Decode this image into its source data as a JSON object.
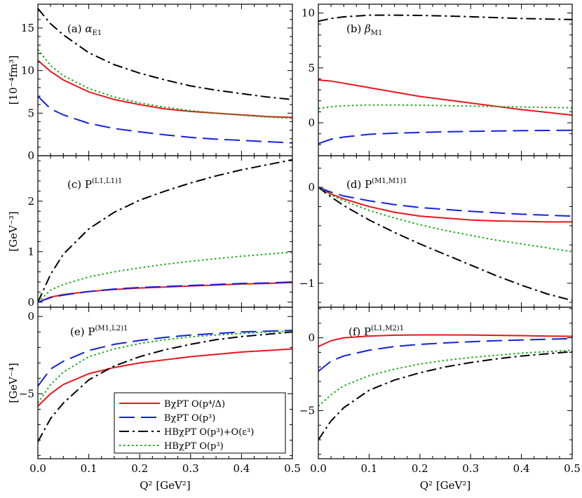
{
  "chart_data": [
    {
      "id": "a",
      "type": "line",
      "label_main": "(a) ",
      "label_italic": "α",
      "label_sub": "E1",
      "ylabel": "[10⁻⁴fm³]",
      "xlim": [
        0,
        0.5
      ],
      "ylim": [
        0,
        17.8
      ],
      "yticks": [
        {
          "v": 0,
          "t": "0"
        },
        {
          "v": 5,
          "t": "5"
        },
        {
          "v": 10,
          "t": "10"
        },
        {
          "v": 15,
          "t": "15"
        }
      ],
      "x": [
        0,
        0.025,
        0.05,
        0.1,
        0.15,
        0.2,
        0.25,
        0.3,
        0.35,
        0.4,
        0.45,
        0.5
      ],
      "series": [
        {
          "key": "bchpt_p4",
          "values": [
            11.2,
            9.9,
            8.9,
            7.5,
            6.6,
            6.0,
            5.5,
            5.2,
            5.0,
            4.8,
            4.6,
            4.5
          ]
        },
        {
          "key": "bchpt_p3",
          "values": [
            7.0,
            5.5,
            4.8,
            3.8,
            3.2,
            2.8,
            2.45,
            2.15,
            1.95,
            1.8,
            1.65,
            1.5
          ]
        },
        {
          "key": "hbchpt_p3_eps3",
          "values": [
            17.3,
            15.5,
            14.2,
            12.1,
            10.7,
            9.7,
            8.9,
            8.2,
            7.7,
            7.3,
            6.9,
            6.6
          ]
        },
        {
          "key": "hbchpt_p3",
          "values": [
            12.5,
            10.6,
            9.4,
            7.9,
            6.9,
            6.2,
            5.7,
            5.3,
            5.0,
            4.75,
            4.55,
            4.4
          ]
        }
      ]
    },
    {
      "id": "b",
      "type": "line",
      "label_main": "(b) ",
      "label_italic": "β",
      "label_sub": "M1",
      "ylabel": "",
      "xlim": [
        0,
        0.5
      ],
      "ylim": [
        -3,
        10.8
      ],
      "yticks": [
        {
          "v": 0,
          "t": "0"
        },
        {
          "v": 5,
          "t": "5"
        },
        {
          "v": 10,
          "t": "10"
        }
      ],
      "x": [
        0,
        0.025,
        0.05,
        0.1,
        0.15,
        0.2,
        0.25,
        0.3,
        0.35,
        0.4,
        0.45,
        0.5
      ],
      "series": [
        {
          "key": "bchpt_p4",
          "values": [
            3.9,
            3.8,
            3.6,
            3.2,
            2.8,
            2.4,
            2.1,
            1.8,
            1.5,
            1.2,
            0.95,
            0.7
          ]
        },
        {
          "key": "bchpt_p3",
          "values": [
            -1.9,
            -1.5,
            -1.3,
            -1.05,
            -0.95,
            -0.88,
            -0.82,
            -0.78,
            -0.75,
            -0.72,
            -0.7,
            -0.68
          ]
        },
        {
          "key": "hbchpt_p3_eps3",
          "values": [
            9.25,
            9.5,
            9.65,
            9.8,
            9.8,
            9.78,
            9.73,
            9.66,
            9.58,
            9.5,
            9.45,
            9.4
          ]
        },
        {
          "key": "hbchpt_p3",
          "values": [
            1.3,
            1.45,
            1.55,
            1.62,
            1.62,
            1.6,
            1.56,
            1.52,
            1.48,
            1.44,
            1.4,
            1.37
          ]
        }
      ]
    },
    {
      "id": "c",
      "type": "line",
      "label_main": "(c) P",
      "label_italic": "",
      "label_sup": "(L1,L1)1",
      "ylabel": "[GeV⁻³]",
      "xlim": [
        0,
        0.5
      ],
      "ylim": [
        -0.1,
        2.9
      ],
      "yticks": [
        {
          "v": 0,
          "t": "0"
        },
        {
          "v": 1,
          "t": "1"
        },
        {
          "v": 2,
          "t": "2"
        }
      ],
      "x": [
        0,
        0.025,
        0.05,
        0.1,
        0.15,
        0.2,
        0.25,
        0.3,
        0.35,
        0.4,
        0.45,
        0.5
      ],
      "series": [
        {
          "key": "bchpt_p4",
          "values": [
            0.0,
            0.1,
            0.15,
            0.21,
            0.25,
            0.28,
            0.3,
            0.32,
            0.34,
            0.36,
            0.37,
            0.39
          ]
        },
        {
          "key": "bchpt_p3",
          "values": [
            0.0,
            0.09,
            0.14,
            0.21,
            0.26,
            0.29,
            0.31,
            0.33,
            0.35,
            0.37,
            0.38,
            0.4
          ]
        },
        {
          "key": "hbchpt_p3_eps3",
          "values": [
            0.0,
            0.55,
            0.95,
            1.45,
            1.78,
            2.02,
            2.2,
            2.36,
            2.5,
            2.62,
            2.72,
            2.82
          ]
        },
        {
          "key": "hbchpt_p3",
          "values": [
            0.0,
            0.24,
            0.35,
            0.5,
            0.6,
            0.68,
            0.75,
            0.81,
            0.86,
            0.91,
            0.95,
            0.99
          ]
        }
      ]
    },
    {
      "id": "d",
      "type": "line",
      "label_main": "(d) P",
      "label_italic": "",
      "label_sup": "(M1,M1)1",
      "ylabel": "",
      "xlim": [
        0,
        0.5
      ],
      "ylim": [
        -1.25,
        0.33
      ],
      "yticks": [
        {
          "v": 0,
          "t": "0"
        },
        {
          "v": -1,
          "t": "−1"
        }
      ],
      "x": [
        0,
        0.025,
        0.05,
        0.1,
        0.15,
        0.2,
        0.25,
        0.3,
        0.35,
        0.4,
        0.45,
        0.5
      ],
      "series": [
        {
          "key": "bchpt_p4",
          "values": [
            0.0,
            -0.07,
            -0.12,
            -0.2,
            -0.26,
            -0.3,
            -0.32,
            -0.34,
            -0.35,
            -0.355,
            -0.36,
            -0.36
          ]
        },
        {
          "key": "bchpt_p3",
          "values": [
            0.0,
            -0.05,
            -0.09,
            -0.14,
            -0.18,
            -0.21,
            -0.23,
            -0.25,
            -0.265,
            -0.28,
            -0.29,
            -0.3
          ]
        },
        {
          "key": "hbchpt_p3_eps3",
          "values": [
            0.0,
            -0.1,
            -0.19,
            -0.34,
            -0.47,
            -0.59,
            -0.7,
            -0.81,
            -0.92,
            -1.02,
            -1.11,
            -1.18
          ]
        },
        {
          "key": "hbchpt_p3",
          "values": [
            0.0,
            -0.08,
            -0.14,
            -0.24,
            -0.32,
            -0.39,
            -0.45,
            -0.5,
            -0.55,
            -0.59,
            -0.63,
            -0.67
          ]
        }
      ]
    },
    {
      "id": "e",
      "type": "line",
      "label_main": "(e) P",
      "label_italic": "",
      "label_sup": "(M1,L2)1",
      "ylabel": "[GeV⁻⁴]",
      "xlim": [
        0,
        0.5
      ],
      "ylim": [
        -9.2,
        0.6
      ],
      "yticks": [
        {
          "v": 0,
          "t": "0"
        },
        {
          "v": -5,
          "t": "−5"
        }
      ],
      "x": [
        0,
        0.025,
        0.05,
        0.1,
        0.15,
        0.2,
        0.25,
        0.3,
        0.35,
        0.4,
        0.45,
        0.5
      ],
      "series": [
        {
          "key": "bchpt_p4",
          "values": [
            -5.8,
            -5.0,
            -4.4,
            -3.7,
            -3.3,
            -3.0,
            -2.8,
            -2.6,
            -2.45,
            -2.3,
            -2.2,
            -2.1
          ]
        },
        {
          "key": "bchpt_p3",
          "values": [
            -4.5,
            -3.4,
            -2.9,
            -2.2,
            -1.8,
            -1.55,
            -1.35,
            -1.2,
            -1.1,
            -1.0,
            -0.95,
            -0.9
          ]
        },
        {
          "key": "hbchpt_p3_eps3",
          "values": [
            -8.1,
            -6.6,
            -5.6,
            -4.1,
            -3.2,
            -2.6,
            -2.15,
            -1.8,
            -1.5,
            -1.3,
            -1.15,
            -1.0
          ]
        },
        {
          "key": "hbchpt_p3",
          "values": [
            -5.6,
            -4.4,
            -3.6,
            -2.6,
            -2.1,
            -1.75,
            -1.5,
            -1.32,
            -1.2,
            -1.1,
            -1.0,
            -0.95
          ]
        }
      ]
    },
    {
      "id": "f",
      "type": "line",
      "label_main": "(f) P",
      "label_italic": "",
      "label_sup": "(L1,M2)1",
      "ylabel": "",
      "xlim": [
        0,
        0.5
      ],
      "ylim": [
        -8.3,
        2.1
      ],
      "yticks": [
        {
          "v": 0,
          "t": "0"
        },
        {
          "v": -5,
          "t": "−5"
        }
      ],
      "x": [
        0,
        0.025,
        0.05,
        0.1,
        0.15,
        0.2,
        0.25,
        0.3,
        0.35,
        0.4,
        0.45,
        0.5
      ],
      "series": [
        {
          "key": "bchpt_p4",
          "values": [
            -0.6,
            -0.2,
            0.0,
            0.12,
            0.18,
            0.2,
            0.2,
            0.19,
            0.17,
            0.15,
            0.12,
            0.1
          ]
        },
        {
          "key": "bchpt_p3",
          "values": [
            -2.3,
            -1.6,
            -1.25,
            -0.85,
            -0.6,
            -0.45,
            -0.35,
            -0.27,
            -0.2,
            -0.15,
            -0.1,
            -0.05
          ]
        },
        {
          "key": "hbchpt_p3_eps3",
          "values": [
            -7.0,
            -5.7,
            -4.8,
            -3.6,
            -2.9,
            -2.4,
            -2.0,
            -1.7,
            -1.45,
            -1.25,
            -1.1,
            -0.95
          ]
        },
        {
          "key": "hbchpt_p3",
          "values": [
            -4.7,
            -3.9,
            -3.3,
            -2.6,
            -2.15,
            -1.8,
            -1.55,
            -1.35,
            -1.2,
            -1.05,
            -0.95,
            -0.85
          ]
        }
      ]
    }
  ],
  "xticks": [
    {
      "v": 0,
      "t": "0.0"
    },
    {
      "v": 0.1,
      "t": "0.1"
    },
    {
      "v": 0.2,
      "t": "0.2"
    },
    {
      "v": 0.3,
      "t": "0.3"
    },
    {
      "v": 0.4,
      "t": "0.4"
    },
    {
      "v": 0.5,
      "t": "0.5"
    }
  ],
  "xlabel": "Q² [GeV²]",
  "styles": {
    "bchpt_p4": {
      "color": "#e8161b",
      "dash": ""
    },
    "bchpt_p3": {
      "color": "#1421e0",
      "dash": "22 9"
    },
    "hbchpt_p3_eps3": {
      "color": "#000000",
      "dash": "14 5 3 5"
    },
    "hbchpt_p3": {
      "color": "#1aad1a",
      "dash": "2.5 3.5"
    }
  },
  "legend": {
    "placement": "bottom-right of panel (e)",
    "entries": [
      {
        "key": "bchpt_p4",
        "text": "BχPT O(p⁴/Δ)"
      },
      {
        "key": "bchpt_p3",
        "text": "BχPT O(p³)"
      },
      {
        "key": "hbchpt_p3_eps3",
        "text": "HBχPT O(p³)+O(ε³)"
      },
      {
        "key": "hbchpt_p3",
        "text": "HBχPT O(p³)"
      }
    ]
  }
}
